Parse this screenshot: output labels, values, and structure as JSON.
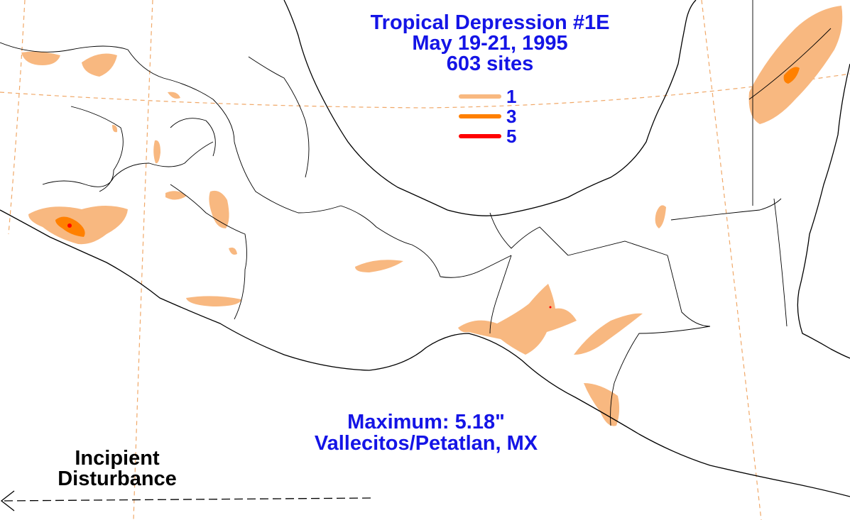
{
  "title": {
    "line1": "Tropical Depression #1E",
    "line2": "May 19-21, 1995",
    "line3": "603 sites"
  },
  "legend": {
    "items": [
      {
        "label": "1",
        "color": "#f8b880"
      },
      {
        "label": "3",
        "color": "#ff8000"
      },
      {
        "label": "5",
        "color": "#ff0000"
      }
    ]
  },
  "maximum": {
    "label": "Maximum:  5.18\"",
    "location": "Vallecitos/Petatlan, MX"
  },
  "track": {
    "label_line1": "Incipient",
    "label_line2": "Disturbance"
  },
  "colors": {
    "text": "#1414e6",
    "rain_1": "#f8b880",
    "rain_3": "#ff8000",
    "rain_5": "#ff0000",
    "graticule": "#f0a868",
    "coastline": "#000000"
  }
}
